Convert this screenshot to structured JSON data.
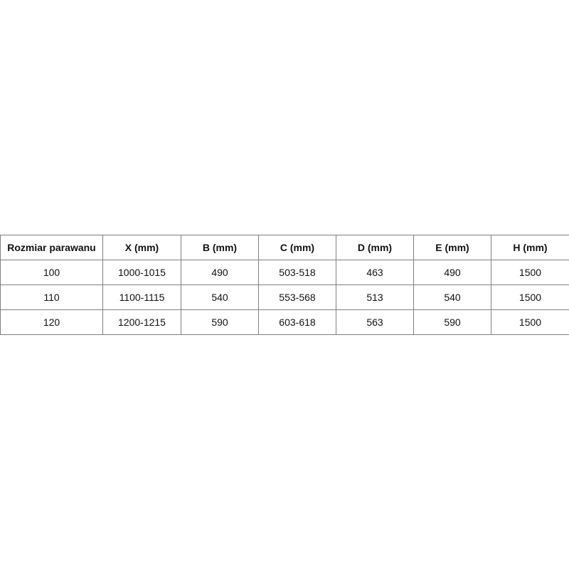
{
  "table": {
    "headers": [
      "Rozmiar parawanu",
      "X (mm)",
      "B (mm)",
      "C (mm)",
      "D (mm)",
      "E (mm)",
      "H (mm)"
    ],
    "rows": [
      [
        "100",
        "1000-1015",
        "490",
        "503-518",
        "463",
        "490",
        "1500"
      ],
      [
        "110",
        "1100-1115",
        "540",
        "553-568",
        "513",
        "540",
        "1500"
      ],
      [
        "120",
        "1200-1215",
        "590",
        "603-618",
        "563",
        "590",
        "1500"
      ]
    ]
  }
}
